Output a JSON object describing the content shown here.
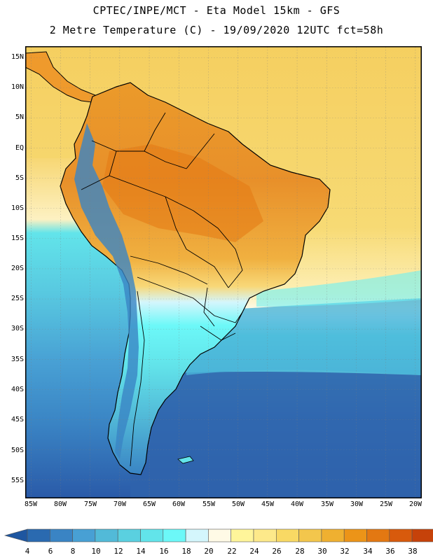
{
  "header": {
    "line1": "CPTEC/INPE/MCT -  Eta Model 15km - GFS",
    "line2": "2 Metre Temperature (C) - 19/09/2020 12UTC fct=58h"
  },
  "map": {
    "region": "South America",
    "variable": "2 Metre Temperature",
    "units": "C",
    "lat_range": [
      -57.5,
      17.5
    ],
    "lon_range": [
      -86.5,
      -19.5
    ],
    "lat_ticks": [
      "15N",
      "10N",
      "5N",
      "EQ",
      "5S",
      "10S",
      "15S",
      "20S",
      "25S",
      "30S",
      "35S",
      "40S",
      "45S",
      "50S",
      "55S"
    ],
    "lat_values": [
      15,
      10,
      5,
      0,
      -5,
      -10,
      -15,
      -20,
      -25,
      -30,
      -35,
      -40,
      -45,
      -50,
      -55
    ],
    "lon_ticks": [
      "85W",
      "80W",
      "75W",
      "70W",
      "65W",
      "60W",
      "55W",
      "50W",
      "45W",
      "40W",
      "35W",
      "30W",
      "25W",
      "20W"
    ],
    "lon_values": [
      -85,
      -80,
      -75,
      -70,
      -65,
      -60,
      -55,
      -50,
      -45,
      -40,
      -35,
      -30,
      -25,
      -20
    ]
  },
  "colorbar": {
    "labels": [
      "4",
      "6",
      "8",
      "10",
      "12",
      "14",
      "16",
      "18",
      "20",
      "22",
      "24",
      "26",
      "28",
      "30",
      "32",
      "34",
      "36",
      "38"
    ],
    "colors": [
      "#1e56a0",
      "#2a6ab0",
      "#3a84c4",
      "#48a0d4",
      "#52bad8",
      "#5ad0e0",
      "#62e4ea",
      "#6cf8f8",
      "#d4f6fc",
      "#fffae6",
      "#fff59a",
      "#fde98a",
      "#f9d964",
      "#f3c64c",
      "#efb030",
      "#ec9418",
      "#e37812",
      "#d85a0c",
      "#c6420a",
      "#b02e08"
    ]
  }
}
